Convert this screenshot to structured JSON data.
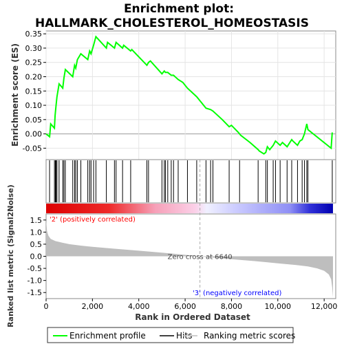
{
  "title_line1": "Enrichment plot:",
  "title_line2": "HALLMARK_CHOLESTEROL_HOMEOSTASIS",
  "chart_data": [
    {
      "type": "line",
      "panel": "enrichment-profile",
      "ylabel": "Enrichment score (ES)",
      "xlim": [
        0,
        12500
      ],
      "ylim": [
        -0.09,
        0.36
      ],
      "yticks": [
        -0.05,
        0.0,
        0.05,
        0.1,
        0.15,
        0.2,
        0.25,
        0.3,
        0.35
      ],
      "ytick_labels": [
        "-0.05",
        "0.00",
        "0.05",
        "0.10",
        "0.15",
        "0.20",
        "0.25",
        "0.30",
        "0.35"
      ],
      "grid": true,
      "color": "#00ff00",
      "x": [
        0,
        150,
        200,
        360,
        390,
        430,
        470,
        560,
        720,
        770,
        830,
        1150,
        1230,
        1280,
        1350,
        1500,
        1800,
        1880,
        1940,
        2050,
        2150,
        2600,
        2650,
        2950,
        3020,
        3300,
        3350,
        3650,
        3700,
        4350,
        4420,
        4500,
        5000,
        5100,
        5150,
        5250,
        5400,
        5500,
        5700,
        5900,
        6100,
        6500,
        6900,
        7100,
        7200,
        7600,
        7900,
        8000,
        8300,
        8400,
        8800,
        9150,
        9200,
        9400,
        9480,
        9550,
        9650,
        9800,
        9900,
        10100,
        10200,
        10400,
        10600,
        10650,
        10850,
        10950,
        11050,
        11150,
        11250,
        11300,
        12300,
        12350
      ],
      "y": [
        0.0,
        -0.01,
        0.035,
        0.02,
        0.065,
        0.1,
        0.13,
        0.175,
        0.16,
        0.195,
        0.225,
        0.2,
        0.24,
        0.23,
        0.26,
        0.28,
        0.26,
        0.29,
        0.28,
        0.31,
        0.34,
        0.3,
        0.32,
        0.3,
        0.32,
        0.3,
        0.31,
        0.29,
        0.295,
        0.24,
        0.25,
        0.255,
        0.21,
        0.22,
        0.215,
        0.215,
        0.205,
        0.205,
        0.19,
        0.18,
        0.16,
        0.13,
        0.09,
        0.085,
        0.08,
        0.05,
        0.025,
        0.03,
        0.005,
        -0.005,
        -0.03,
        -0.055,
        -0.06,
        -0.07,
        -0.065,
        -0.045,
        -0.055,
        -0.04,
        -0.025,
        -0.04,
        -0.03,
        -0.045,
        -0.02,
        -0.025,
        -0.04,
        -0.025,
        -0.02,
        0.0,
        0.035,
        0.015,
        -0.05,
        0.005
      ]
    },
    {
      "type": "scatter",
      "panel": "hits",
      "xlim": [
        0,
        12500
      ],
      "x": [
        150,
        360,
        400,
        430,
        470,
        560,
        720,
        770,
        830,
        1150,
        1230,
        1280,
        1350,
        1500,
        1800,
        1880,
        1940,
        2050,
        2150,
        2600,
        2950,
        3020,
        3300,
        3650,
        4350,
        4420,
        5000,
        5100,
        5150,
        5250,
        5400,
        5500,
        5700,
        6100,
        6500,
        6900,
        7100,
        7200,
        7900,
        8350,
        9150,
        9480,
        9550,
        9800,
        9900,
        10100,
        10400,
        10600,
        10850,
        11050,
        11150,
        11250,
        11300,
        12350
      ]
    },
    {
      "type": "area",
      "panel": "ranked-list-metric",
      "ylabel": "Ranked list metric (Signal2Noise)",
      "xlabel": "Rank in Ordered Dataset",
      "xlim": [
        0,
        12500
      ],
      "ylim": [
        -1.75,
        1.75
      ],
      "yticks": [
        -1.5,
        -1.0,
        -0.5,
        0.0,
        0.5,
        1.0,
        1.5
      ],
      "ytick_labels": [
        "-1.5",
        "-1.0",
        "-0.5",
        "0.0",
        "0.5",
        "1.0",
        "1.5"
      ],
      "xticks": [
        0,
        2000,
        4000,
        6000,
        8000,
        10000,
        12000
      ],
      "xtick_labels": [
        "0",
        "2,000",
        "4,000",
        "6,000",
        "8,000",
        "10,000",
        "12,000"
      ],
      "color": "#bebebe",
      "x": [
        0,
        40,
        100,
        200,
        400,
        700,
        1000,
        1500,
        2000,
        3000,
        4000,
        5000,
        6000,
        6640,
        7000,
        8000,
        9000,
        10000,
        10800,
        11300,
        11700,
        12000,
        12200,
        12300,
        12350,
        12380
      ],
      "y": [
        1.5,
        1.05,
        0.85,
        0.72,
        0.63,
        0.56,
        0.5,
        0.44,
        0.39,
        0.31,
        0.23,
        0.15,
        0.06,
        0.0,
        -0.04,
        -0.12,
        -0.2,
        -0.29,
        -0.36,
        -0.42,
        -0.5,
        -0.6,
        -0.75,
        -0.95,
        -1.3,
        -1.7
      ],
      "zero_cross_label": "Zero cross at 6640",
      "zero_cross_x": 6640,
      "positive_label": "'2' (positively correlated)",
      "negative_label": "'3' (negatively correlated)"
    }
  ],
  "legend": {
    "items": [
      {
        "label": "Enrichment profile",
        "color": "#00ff00"
      },
      {
        "label": "Hits",
        "color": "#000000"
      },
      {
        "label": "Ranking metric scores",
        "color": "#bebebe"
      }
    ]
  }
}
